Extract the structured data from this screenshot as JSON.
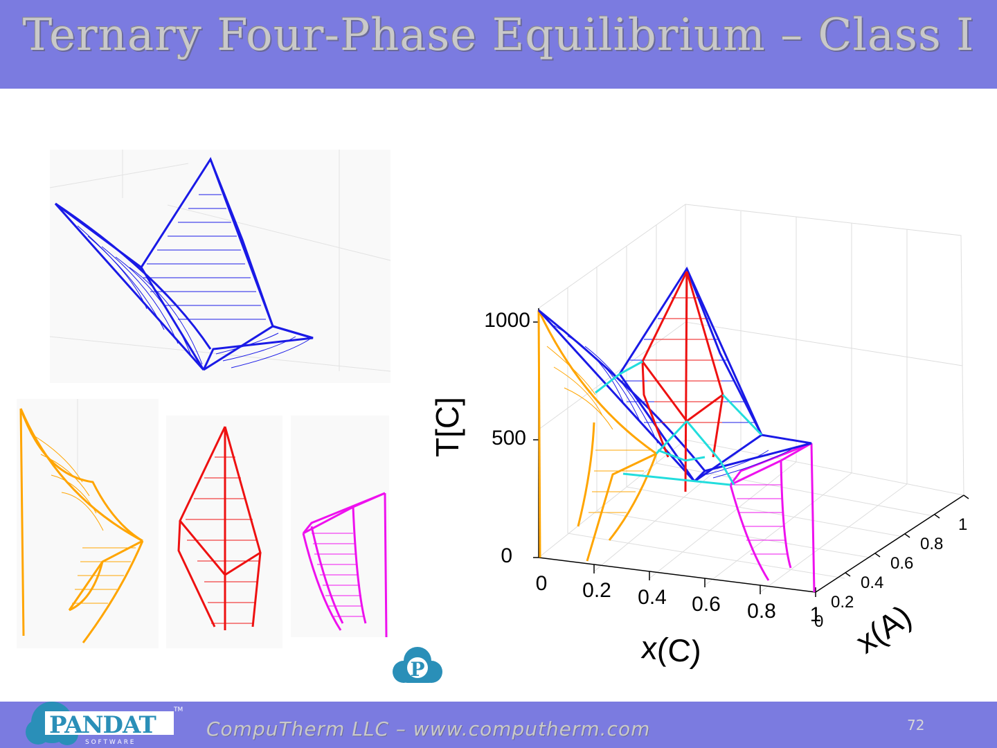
{
  "slide": {
    "title": "Ternary Four-Phase Equilibrium – Class I",
    "footer_text": "CompuTherm LLC – www.computherm.com",
    "page_number": "72"
  },
  "logo": {
    "name": "PANDAT",
    "tm": "TM",
    "sub": "S O F T W A R E",
    "icon_letter": "P"
  },
  "plot": {
    "ylabel": "T[C]",
    "xlabel": "x(C)",
    "zlabel": "x(A)",
    "y_ticks": [
      "1000",
      "500",
      "0"
    ],
    "x_ticks": [
      "0",
      "0.2",
      "0.4",
      "0.6",
      "0.8",
      "1"
    ],
    "z_ticks": [
      "0",
      "0.2",
      "0.4",
      "0.6",
      "0.8",
      "1"
    ]
  },
  "colors": {
    "header_bg": "#7b7be0",
    "blue": "#1a1ae6",
    "red": "#ee1111",
    "orange": "#ffa500",
    "magenta": "#ee11ee",
    "cyan": "#22dddd"
  }
}
